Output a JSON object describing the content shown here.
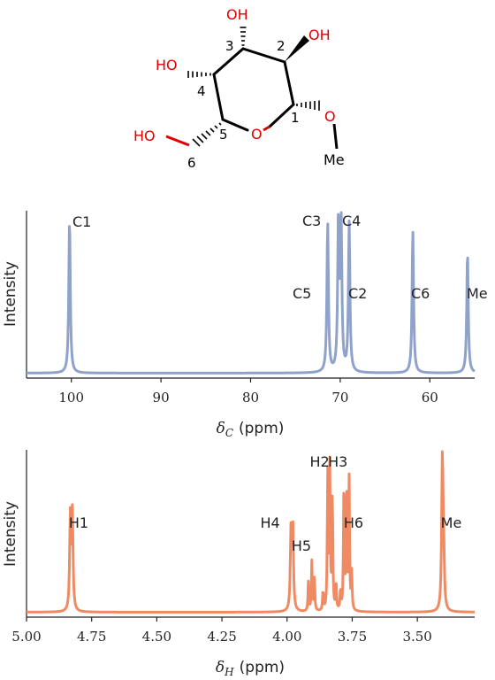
{
  "molecule": {
    "atoms": {
      "oh3": "OH",
      "oh2": "OH",
      "oh4": "HO",
      "ho6": "HO",
      "ring_o": "O",
      "o1": "O",
      "me": "Me"
    },
    "numbers": [
      "1",
      "2",
      "3",
      "4",
      "5",
      "6"
    ],
    "colors": {
      "heteroatom": "#e00000",
      "bond": "#000000"
    }
  },
  "chart_data": [
    {
      "type": "line",
      "ylabel": "Intensity",
      "xlabel_symbol": "δ",
      "xlabel_subscript": "C",
      "xlabel_unit": "(ppm)",
      "xlim": [
        105,
        55
      ],
      "xticks": [
        100,
        90,
        80,
        70,
        60
      ],
      "color": "#8ea2cc",
      "baseline": 0.03,
      "peaks": [
        {
          "ppm": 100.2,
          "height": 0.93,
          "width": 0.1,
          "label": "C1"
        },
        {
          "ppm": 71.4,
          "height": 0.9,
          "width": 0.1,
          "label": "C3"
        },
        {
          "ppm": 70.2,
          "height": 0.91,
          "width": 0.1,
          "label": "C5"
        },
        {
          "ppm": 69.9,
          "height": 0.9,
          "width": 0.1,
          "label": "C2"
        },
        {
          "ppm": 69.0,
          "height": 0.9,
          "width": 0.1,
          "label": "C4"
        },
        {
          "ppm": 61.9,
          "height": 0.86,
          "width": 0.1,
          "label": "C6"
        },
        {
          "ppm": 55.8,
          "height": 0.73,
          "width": 0.1,
          "label": "Me"
        }
      ]
    },
    {
      "type": "line",
      "ylabel": "Intensity",
      "xlabel_symbol": "δ",
      "xlabel_subscript": "H",
      "xlabel_unit": "(ppm)",
      "xlim": [
        5.0,
        3.28
      ],
      "xticks": [
        5.0,
        4.75,
        4.5,
        4.25,
        4.0,
        3.75,
        3.5
      ],
      "tick_labels": [
        "5.00",
        "4.75",
        "4.50",
        "4.25",
        "4.00",
        "3.75",
        "3.50"
      ],
      "color": "#f08a63",
      "baseline": 0.03,
      "peaks": [
        {
          "ppm": 4.832,
          "height": 0.56,
          "width": 0.003
        },
        {
          "ppm": 4.824,
          "height": 0.58,
          "width": 0.003
        },
        {
          "ppm": 3.985,
          "height": 0.47,
          "width": 0.003
        },
        {
          "ppm": 3.978,
          "height": 0.49,
          "width": 0.003
        },
        {
          "ppm": 3.918,
          "height": 0.18,
          "width": 0.002
        },
        {
          "ppm": 3.905,
          "height": 0.3,
          "width": 0.002
        },
        {
          "ppm": 3.895,
          "height": 0.2,
          "width": 0.002
        },
        {
          "ppm": 3.862,
          "height": 0.12,
          "width": 0.002
        },
        {
          "ppm": 3.844,
          "height": 0.82,
          "width": 0.002
        },
        {
          "ppm": 3.836,
          "height": 0.86,
          "width": 0.002
        },
        {
          "ppm": 3.826,
          "height": 0.7,
          "width": 0.002
        },
        {
          "ppm": 3.812,
          "height": 0.16,
          "width": 0.002
        },
        {
          "ppm": 3.795,
          "height": 0.12,
          "width": 0.002
        },
        {
          "ppm": 3.782,
          "height": 0.74,
          "width": 0.002
        },
        {
          "ppm": 3.772,
          "height": 0.78,
          "width": 0.002
        },
        {
          "ppm": 3.762,
          "height": 0.82,
          "width": 0.002
        },
        {
          "ppm": 3.752,
          "height": 0.22,
          "width": 0.002
        },
        {
          "ppm": 3.404,
          "height": 0.96,
          "width": 0.003
        },
        {
          "ppm": 3.399,
          "height": 0.3,
          "width": 0.003
        }
      ],
      "labels": [
        {
          "text": "H1",
          "ppm": 4.8,
          "height": 0.54
        },
        {
          "text": "H4",
          "ppm": 4.065,
          "height": 0.54
        },
        {
          "text": "H5",
          "ppm": 3.945,
          "height": 0.4
        },
        {
          "text": "H2",
          "ppm": 3.875,
          "height": 0.91
        },
        {
          "text": "H3",
          "ppm": 3.805,
          "height": 0.91
        },
        {
          "text": "H6",
          "ppm": 3.745,
          "height": 0.54
        },
        {
          "text": "Me",
          "ppm": 3.37,
          "height": 0.54
        }
      ]
    }
  ]
}
